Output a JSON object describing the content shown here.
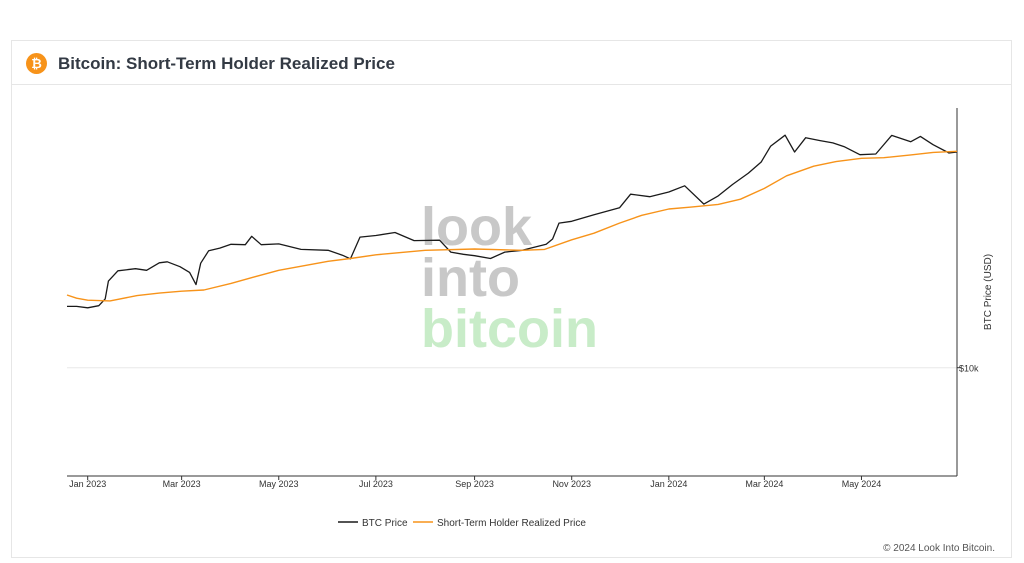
{
  "header": {
    "icon": "bitcoin-icon",
    "icon_glyph": "₿",
    "title": "Bitcoin: Short-Term Holder Realized Price"
  },
  "footer": {
    "copyright": "© 2024 Look Into Bitcoin."
  },
  "watermark": {
    "line1": "look",
    "line2": "into",
    "line3": "bitcoin"
  },
  "colors": {
    "btc_price": "#1a1a1a",
    "sth_realized": "#f7931a",
    "watermark_gray": "#c8c8c8",
    "watermark_green": "#c8ecc8"
  },
  "chart_data": {
    "type": "line",
    "title": "Bitcoin: Short-Term Holder Realized Price",
    "ylabel": "BTC Price (USD)",
    "y_scale": "log",
    "x_tick_labels": [
      "Jan 2023",
      "Mar 2023",
      "May 2023",
      "Jul 2023",
      "Sep 2023",
      "Nov 2023",
      "Jan 2024",
      "Mar 2024",
      "May 2024"
    ],
    "x_tick_dates": [
      "2023-01-01",
      "2023-03-01",
      "2023-05-01",
      "2023-07-01",
      "2023-09-01",
      "2023-11-01",
      "2024-01-01",
      "2024-03-01",
      "2024-05-01"
    ],
    "y_tick_labels": [
      "$10k"
    ],
    "y_tick_values": [
      10000
    ],
    "xlim": [
      "2022-12-19",
      "2024-06-30"
    ],
    "ylim": [
      4000,
      90000
    ],
    "legend": "bottom-center",
    "series": [
      {
        "name": "BTC Price",
        "x": [
          "2022-12-19",
          "2022-12-25",
          "2023-01-01",
          "2023-01-08",
          "2023-01-12",
          "2023-01-14",
          "2023-01-20",
          "2023-01-31",
          "2023-02-07",
          "2023-02-15",
          "2023-02-20",
          "2023-02-28",
          "2023-03-06",
          "2023-03-10",
          "2023-03-13",
          "2023-03-18",
          "2023-03-25",
          "2023-04-01",
          "2023-04-10",
          "2023-04-14",
          "2023-04-20",
          "2023-05-01",
          "2023-05-15",
          "2023-06-01",
          "2023-06-10",
          "2023-06-15",
          "2023-06-21",
          "2023-07-01",
          "2023-07-13",
          "2023-07-25",
          "2023-08-10",
          "2023-08-17",
          "2023-08-25",
          "2023-09-01",
          "2023-09-11",
          "2023-09-20",
          "2023-10-01",
          "2023-10-16",
          "2023-10-20",
          "2023-10-24",
          "2023-11-01",
          "2023-11-15",
          "2023-12-01",
          "2023-12-08",
          "2023-12-20",
          "2024-01-01",
          "2024-01-11",
          "2024-01-23",
          "2024-02-01",
          "2024-02-10",
          "2024-02-20",
          "2024-02-28",
          "2024-03-05",
          "2024-03-14",
          "2024-03-20",
          "2024-03-27",
          "2024-04-05",
          "2024-04-13",
          "2024-04-20",
          "2024-04-30",
          "2024-05-10",
          "2024-05-20",
          "2024-06-01",
          "2024-06-07",
          "2024-06-15",
          "2024-06-25",
          "2024-06-30"
        ],
        "values": [
          16800,
          16800,
          16600,
          16900,
          17900,
          20800,
          22700,
          23100,
          22800,
          24300,
          24500,
          23500,
          22400,
          20200,
          24200,
          26900,
          27500,
          28400,
          28300,
          30400,
          28300,
          28500,
          27200,
          27000,
          25900,
          25100,
          30200,
          30600,
          31400,
          29300,
          29400,
          26600,
          26100,
          25800,
          25200,
          26600,
          27000,
          28400,
          29700,
          34000,
          34500,
          36500,
          38700,
          43400,
          42500,
          44200,
          46600,
          39900,
          42800,
          47100,
          51900,
          57000,
          65200,
          71500,
          62000,
          70000,
          68300,
          67000,
          64900,
          60600,
          61000,
          71400,
          67700,
          70800,
          66000,
          61500,
          62000
        ]
      },
      {
        "name": "Short-Term Holder Realized Price",
        "x": [
          "2022-12-19",
          "2022-12-25",
          "2023-01-01",
          "2023-01-15",
          "2023-02-01",
          "2023-02-15",
          "2023-03-01",
          "2023-03-15",
          "2023-04-01",
          "2023-04-15",
          "2023-05-01",
          "2023-06-01",
          "2023-06-15",
          "2023-07-01",
          "2023-08-01",
          "2023-09-01",
          "2023-10-01",
          "2023-10-15",
          "2023-11-01",
          "2023-11-15",
          "2023-12-01",
          "2023-12-15",
          "2024-01-01",
          "2024-01-15",
          "2024-02-01",
          "2024-02-15",
          "2024-03-01",
          "2024-03-15",
          "2024-04-01",
          "2024-04-15",
          "2024-05-01",
          "2024-05-15",
          "2024-06-01",
          "2024-06-15",
          "2024-06-30"
        ],
        "values": [
          18500,
          18000,
          17700,
          17600,
          18400,
          18800,
          19100,
          19300,
          20400,
          21500,
          22800,
          24600,
          25200,
          26000,
          27000,
          27300,
          27000,
          27200,
          29500,
          31200,
          34000,
          36300,
          38300,
          38900,
          39800,
          41600,
          45600,
          50700,
          55000,
          57200,
          58800,
          59100,
          60500,
          61800,
          62400
        ]
      }
    ]
  }
}
